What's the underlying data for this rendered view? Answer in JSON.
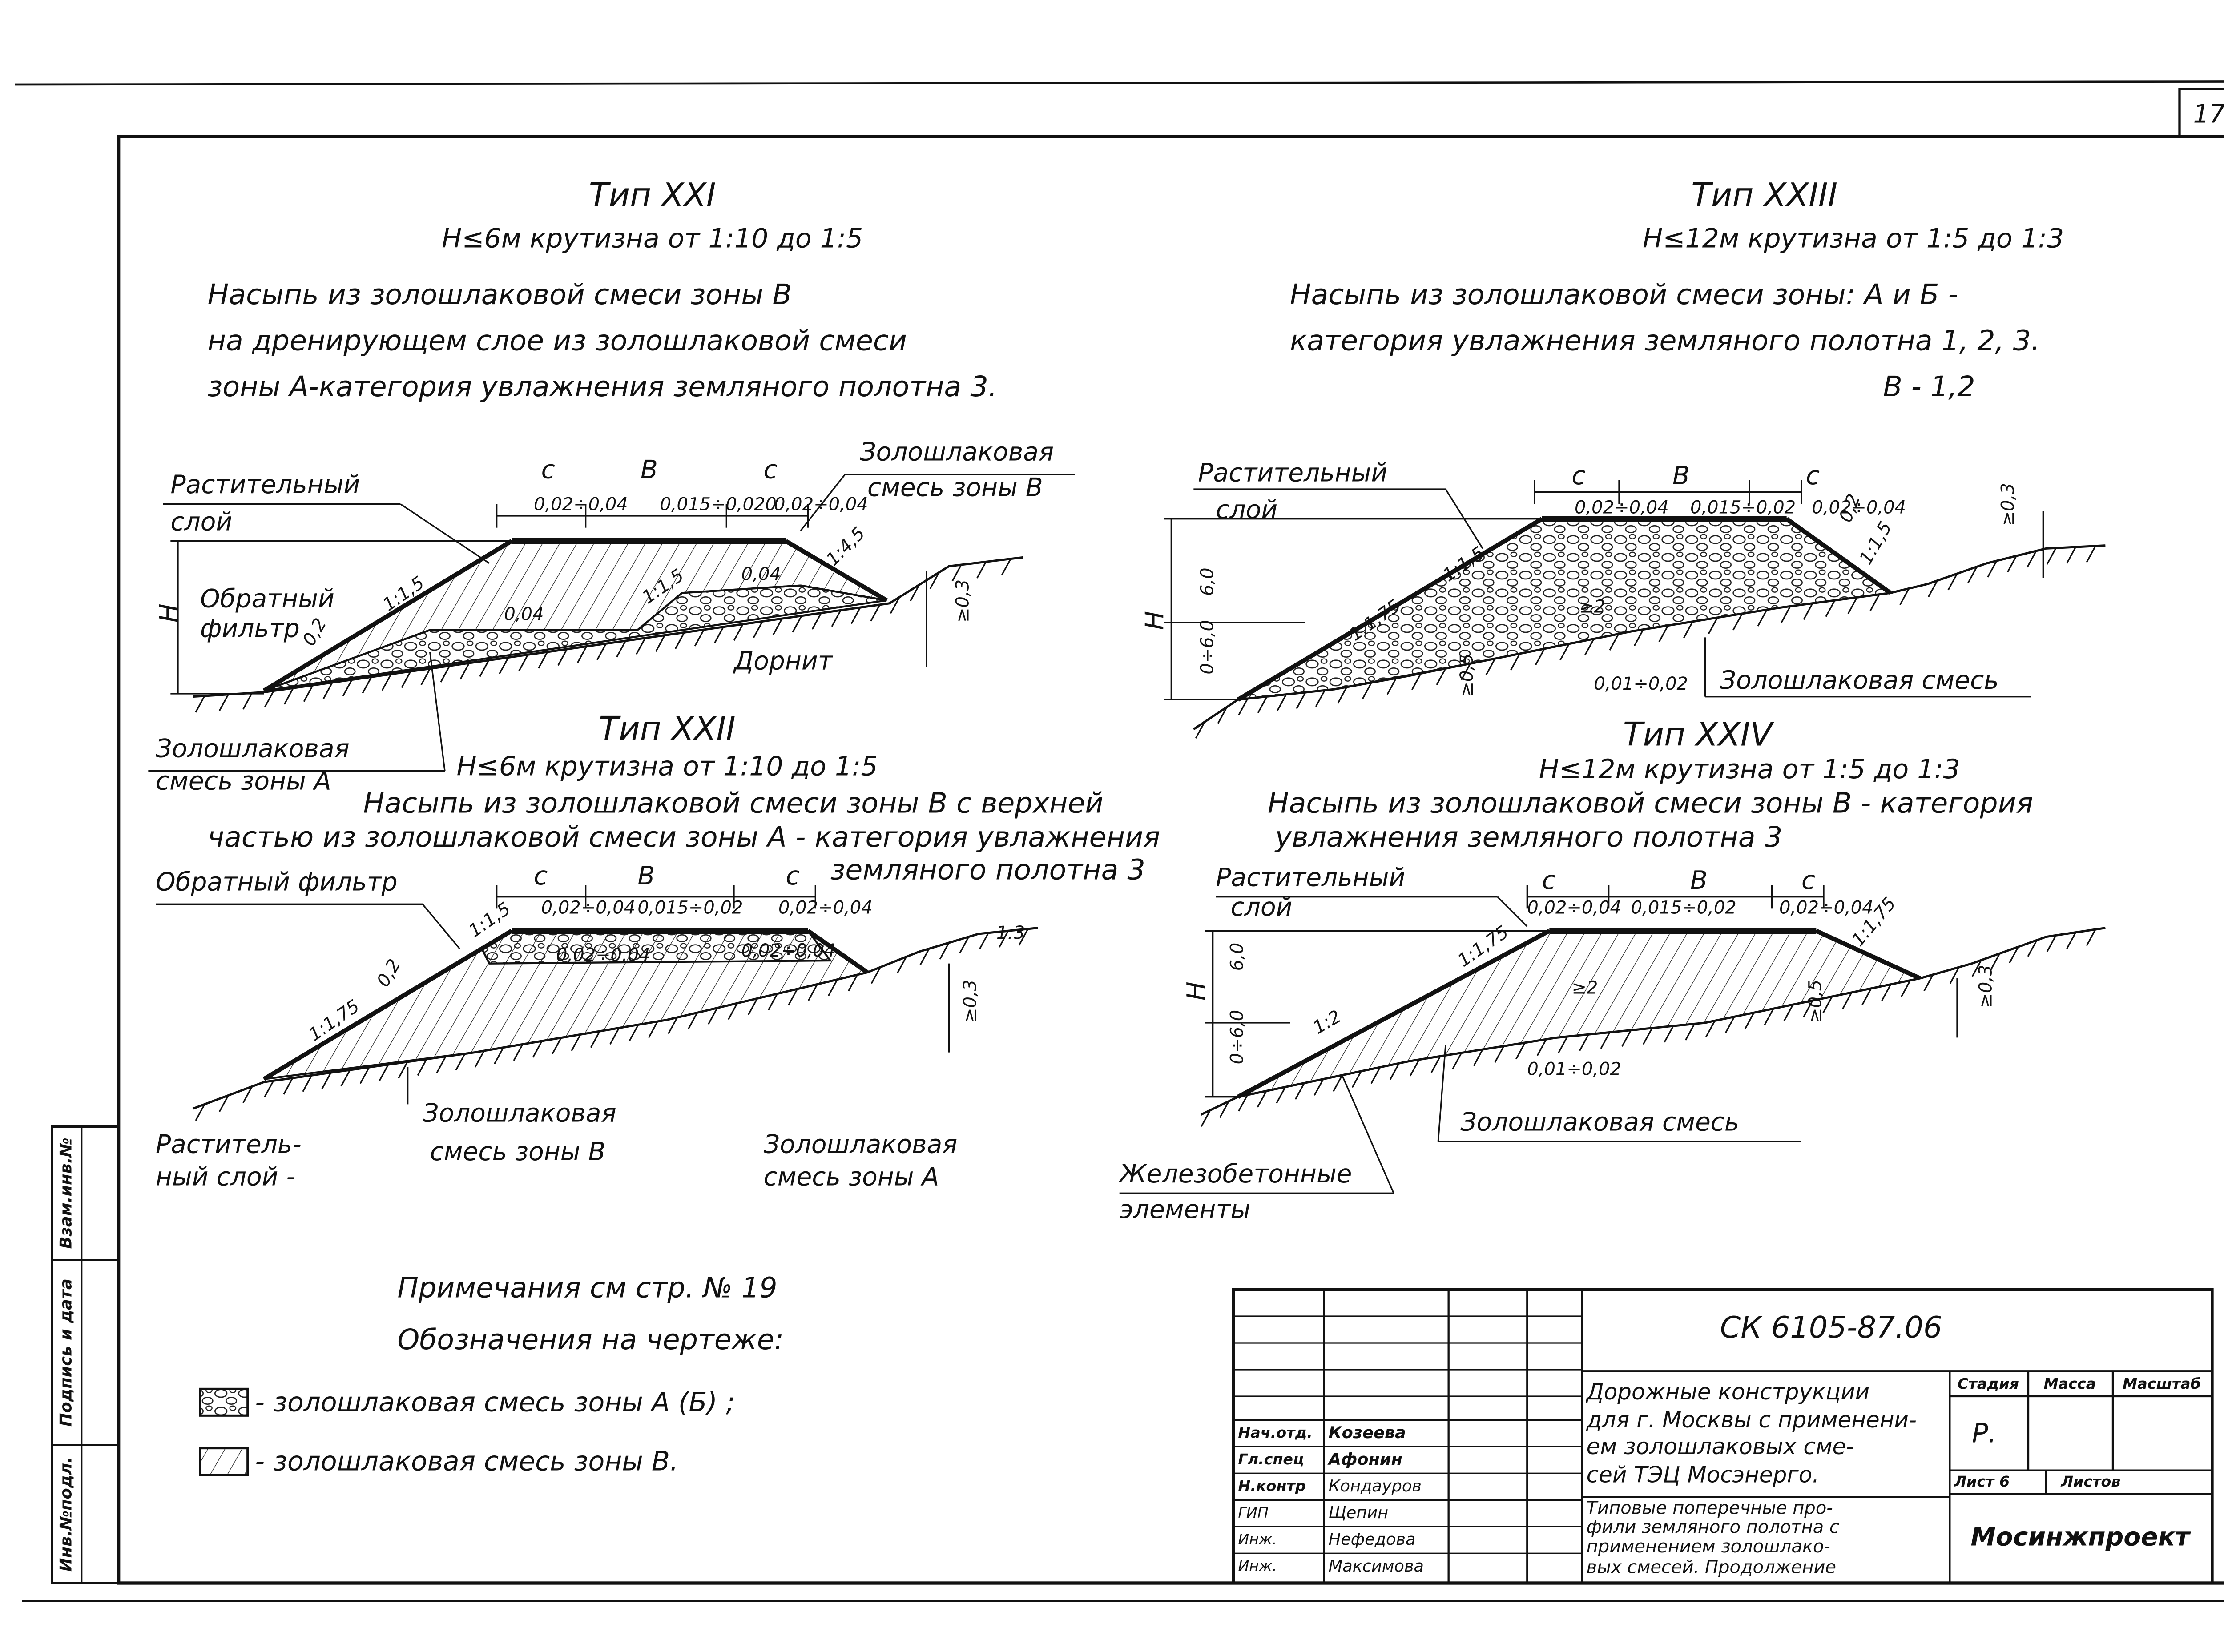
{
  "sheet_number": "17",
  "sections": [
    {
      "title": "Тип XXI",
      "params": "H≤6м  крутизна от 1:10 до 1:5",
      "description": [
        "Насыпь из золошлаковой смеси зоны В",
        "на дренирующем слое из золошлаковой смеси",
        "зоны А-категория увлажнения земляного полотна 3."
      ],
      "labels": [
        "Растительный",
        "слой",
        "c",
        "B",
        "c",
        "0,02÷0,04",
        "0,015÷0,020",
        "0,02÷0,04",
        "Золошлаковая",
        "смесь зоны В",
        "1:1,5",
        "1:1,5",
        "1:4,5",
        "0,04",
        "0,04",
        "H",
        "Обратный",
        "фильтр",
        "0,2",
        "Дорнит",
        "≥0,3",
        "Золошлаковая",
        "смесь зоны А"
      ]
    },
    {
      "title": "Тип XXIII",
      "params": "H≤12м  крутизна от 1:5 до 1:3",
      "description": [
        "Насыпь из золошлаковой смеси зоны: А и Б -",
        "категория увлажнения земляного полотна 1, 2, 3.",
        "В - 1,2"
      ],
      "labels": [
        "Растительный",
        "слой",
        "c",
        "B",
        "c",
        "0,02÷0,04",
        "0,015÷0,02",
        "0,02÷0,04",
        "0,2",
        "1:1,5",
        "1:1,5",
        "1:1,75",
        "H",
        "6,0",
        "0÷6,0",
        "≥2",
        "0,01÷0,02",
        "Золошлаковая смесь",
        "≥0,5",
        "≥0,3"
      ]
    },
    {
      "title": "Тип XXII",
      "params": "H≤6м  крутизна от 1:10 до 1:5",
      "description": [
        "Насыпь из золошлаковой смеси зоны В с верхней",
        "частью из золошлаковой смеси зоны А - категория увлажнения",
        "земляного полотна 3"
      ],
      "labels": [
        "Обратный фильтр",
        "c",
        "B",
        "c",
        "0,02÷0,04",
        "0,015÷0,02",
        "0,02÷0,04",
        "0,02÷0,04",
        "0,02÷0,04",
        "1:1,5",
        "0,2",
        "1:1,75",
        "1:3",
        "≥0,3",
        "Золошлаковая",
        "смесь зоны В",
        "Раститель-",
        "ный слой -",
        "Золошлаковая",
        "смесь зоны А"
      ]
    },
    {
      "title": "Тип XXIV",
      "params": "H≤12м  крутизна от 1:5 до 1:3",
      "description": [
        "Насыпь из золошлаковой смеси зоны В - категория",
        "увлажнения земляного полотна 3"
      ],
      "labels": [
        "Растительный",
        "слой",
        "c",
        "B",
        "c",
        "0,02÷0,04",
        "0,015÷0,02",
        "0,02÷0,04",
        "1:1,75",
        "1:1,75",
        "1:2",
        "≥2",
        "H",
        "6,0",
        "0÷6,0",
        "0,01÷0,02",
        "≥0,5",
        "≥0,3",
        "Золошлаковая смесь",
        "Железобетонные",
        "элементы"
      ]
    }
  ],
  "notes": {
    "see": "Примечания  см  стр. № 19",
    "legend_title": "Обозначения  на  чертеже:",
    "legend": [
      "- золошлаковая  смесь  зоны  А (Б) ;",
      "- золошлаковая  смесь  зоны  В."
    ]
  },
  "side": [
    "Взам.инв.№",
    "Подпись и дата",
    "Инв.№подл."
  ],
  "stamp": {
    "code": "СК 6105-87.06",
    "title": [
      "Дорожные конструкции",
      "для г. Москвы с применени-",
      "ем золошлаковых сме-",
      "сей ТЭЦ Мосэнерго."
    ],
    "sheet_title": [
      "Типовые поперечные про-",
      "фили земляного полотна с",
      "применением золошлако-",
      "вых смесей. Продолжение"
    ],
    "headers": [
      "Стадия",
      "Масса",
      "Масштаб"
    ],
    "stage": "Р.",
    "sheet": "Лист 6",
    "sheets": "Листов",
    "org": "Мосинжпроект",
    "signatures": [
      [
        "Нач.отд.",
        "Козеева"
      ],
      [
        "Гл.спец",
        "Афонин"
      ],
      [
        "Н.контр",
        "Кондауров"
      ],
      [
        "ГИП",
        "Щепин"
      ],
      [
        "Инж.",
        "Нефедова"
      ],
      [
        "Инж.",
        "Максимова"
      ]
    ]
  }
}
